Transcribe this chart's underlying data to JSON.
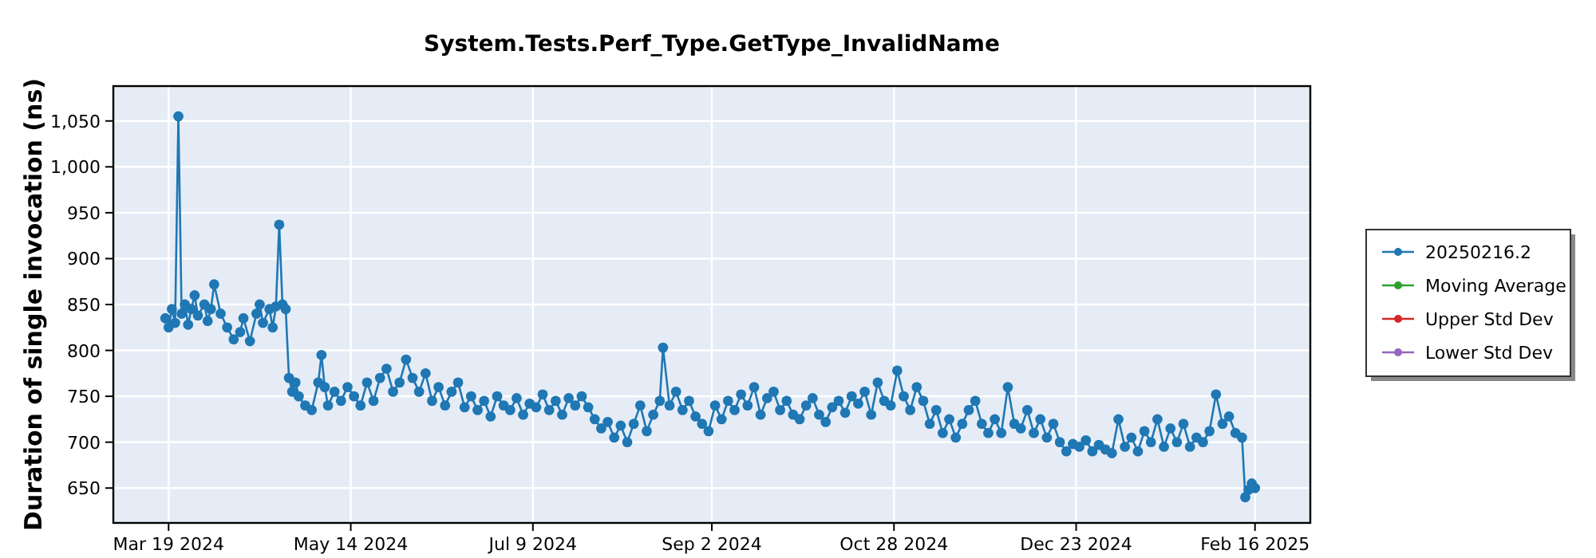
{
  "chart_data": {
    "type": "line",
    "title": "System.Tests.Perf_Type.GetType_InvalidName",
    "ylabel": "Duration of single invocation (ns)",
    "xlim": [
      "2024-03-02",
      "2025-03-05"
    ],
    "xticks": [
      {
        "value": "2024-03-19",
        "label": "Mar 19 2024"
      },
      {
        "value": "2024-05-14",
        "label": "May 14 2024"
      },
      {
        "value": "2024-07-09",
        "label": "Jul 9 2024"
      },
      {
        "value": "2024-09-02",
        "label": "Sep 2 2024"
      },
      {
        "value": "2024-10-28",
        "label": "Oct 28 2024"
      },
      {
        "value": "2024-12-23",
        "label": "Dec 23 2024"
      },
      {
        "value": "2025-02-16",
        "label": "Feb 16 2025"
      }
    ],
    "ylim": [
      612,
      1088
    ],
    "yticks": [
      650,
      700,
      750,
      800,
      850,
      900,
      950,
      {
        "value": 1000,
        "label": "1,000"
      },
      {
        "value": 1050,
        "label": "1,050"
      }
    ],
    "grid": true,
    "legend": "right",
    "marker": "circle",
    "line_style": "solid",
    "series": [
      {
        "name": "20250216.2",
        "color": "#1f77b4",
        "x": [
          "2024-03-18",
          "2024-03-19",
          "2024-03-20",
          "2024-03-21",
          "2024-03-22",
          "2024-03-23",
          "2024-03-24",
          "2024-03-25",
          "2024-03-26",
          "2024-03-27",
          "2024-03-28",
          "2024-03-30",
          "2024-03-31",
          "2024-04-01",
          "2024-04-02",
          "2024-04-04",
          "2024-04-06",
          "2024-04-08",
          "2024-04-10",
          "2024-04-11",
          "2024-04-13",
          "2024-04-15",
          "2024-04-16",
          "2024-04-17",
          "2024-04-19",
          "2024-04-20",
          "2024-04-21",
          "2024-04-22",
          "2024-04-23",
          "2024-04-24",
          "2024-04-25",
          "2024-04-26",
          "2024-04-27",
          "2024-04-28",
          "2024-04-30",
          "2024-05-02",
          "2024-05-04",
          "2024-05-05",
          "2024-05-06",
          "2024-05-07",
          "2024-05-09",
          "2024-05-11",
          "2024-05-13",
          "2024-05-15",
          "2024-05-17",
          "2024-05-19",
          "2024-05-21",
          "2024-05-23",
          "2024-05-25",
          "2024-05-27",
          "2024-05-29",
          "2024-05-31",
          "2024-06-02",
          "2024-06-04",
          "2024-06-06",
          "2024-06-08",
          "2024-06-10",
          "2024-06-12",
          "2024-06-14",
          "2024-06-16",
          "2024-06-18",
          "2024-06-20",
          "2024-06-22",
          "2024-06-24",
          "2024-06-26",
          "2024-06-28",
          "2024-06-30",
          "2024-07-02",
          "2024-07-04",
          "2024-07-06",
          "2024-07-08",
          "2024-07-10",
          "2024-07-12",
          "2024-07-14",
          "2024-07-16",
          "2024-07-18",
          "2024-07-20",
          "2024-07-22",
          "2024-07-24",
          "2024-07-26",
          "2024-07-28",
          "2024-07-30",
          "2024-08-01",
          "2024-08-03",
          "2024-08-05",
          "2024-08-07",
          "2024-08-09",
          "2024-08-11",
          "2024-08-13",
          "2024-08-15",
          "2024-08-17",
          "2024-08-18",
          "2024-08-20",
          "2024-08-22",
          "2024-08-24",
          "2024-08-26",
          "2024-08-28",
          "2024-08-30",
          "2024-09-01",
          "2024-09-03",
          "2024-09-05",
          "2024-09-07",
          "2024-09-09",
          "2024-09-11",
          "2024-09-13",
          "2024-09-15",
          "2024-09-17",
          "2024-09-19",
          "2024-09-21",
          "2024-09-23",
          "2024-09-25",
          "2024-09-27",
          "2024-09-29",
          "2024-10-01",
          "2024-10-03",
          "2024-10-05",
          "2024-10-07",
          "2024-10-09",
          "2024-10-11",
          "2024-10-13",
          "2024-10-15",
          "2024-10-17",
          "2024-10-19",
          "2024-10-21",
          "2024-10-23",
          "2024-10-25",
          "2024-10-27",
          "2024-10-29",
          "2024-10-31",
          "2024-11-02",
          "2024-11-04",
          "2024-11-06",
          "2024-11-08",
          "2024-11-10",
          "2024-11-12",
          "2024-11-14",
          "2024-11-16",
          "2024-11-18",
          "2024-11-20",
          "2024-11-22",
          "2024-11-24",
          "2024-11-26",
          "2024-11-28",
          "2024-11-30",
          "2024-12-02",
          "2024-12-04",
          "2024-12-06",
          "2024-12-08",
          "2024-12-10",
          "2024-12-12",
          "2024-12-14",
          "2024-12-16",
          "2024-12-18",
          "2024-12-20",
          "2024-12-22",
          "2024-12-24",
          "2024-12-26",
          "2024-12-28",
          "2024-12-30",
          "2025-01-01",
          "2025-01-03",
          "2025-01-05",
          "2025-01-07",
          "2025-01-09",
          "2025-01-11",
          "2025-01-13",
          "2025-01-15",
          "2025-01-17",
          "2025-01-19",
          "2025-01-21",
          "2025-01-23",
          "2025-01-25",
          "2025-01-27",
          "2025-01-29",
          "2025-01-31",
          "2025-02-02",
          "2025-02-04",
          "2025-02-06",
          "2025-02-08",
          "2025-02-10",
          "2025-02-12",
          "2025-02-13",
          "2025-02-14",
          "2025-02-15",
          "2025-02-16"
        ],
        "values": [
          835,
          825,
          845,
          830,
          1055,
          840,
          850,
          828,
          845,
          860,
          838,
          850,
          832,
          845,
          872,
          840,
          825,
          812,
          820,
          835,
          810,
          840,
          850,
          830,
          845,
          825,
          848,
          937,
          850,
          845,
          770,
          755,
          765,
          750,
          740,
          735,
          765,
          795,
          760,
          740,
          755,
          745,
          760,
          750,
          740,
          765,
          745,
          770,
          780,
          755,
          765,
          790,
          770,
          755,
          775,
          745,
          760,
          740,
          755,
          765,
          738,
          750,
          735,
          745,
          728,
          750,
          740,
          735,
          748,
          730,
          742,
          738,
          752,
          735,
          745,
          730,
          748,
          740,
          750,
          738,
          725,
          715,
          722,
          705,
          718,
          700,
          720,
          740,
          712,
          730,
          745,
          803,
          740,
          755,
          735,
          745,
          728,
          720,
          712,
          740,
          725,
          745,
          735,
          752,
          740,
          760,
          730,
          748,
          755,
          735,
          745,
          730,
          725,
          740,
          748,
          730,
          722,
          738,
          745,
          732,
          750,
          742,
          755,
          730,
          765,
          745,
          740,
          778,
          750,
          735,
          760,
          745,
          720,
          735,
          710,
          725,
          705,
          720,
          735,
          745,
          720,
          710,
          725,
          710,
          760,
          720,
          715,
          735,
          710,
          725,
          705,
          720,
          700,
          690,
          698,
          695,
          702,
          690,
          697,
          692,
          688,
          725,
          695,
          705,
          690,
          712,
          700,
          725,
          695,
          715,
          700,
          720,
          695,
          705,
          700,
          712,
          752,
          720,
          728,
          710,
          705,
          640,
          648,
          655,
          650
        ]
      },
      {
        "name": "Moving Average",
        "color": "#2ca02c"
      },
      {
        "name": "Upper Std Dev",
        "color": "#d62728"
      },
      {
        "name": "Lower Std Dev",
        "color": "#9467bd"
      }
    ]
  }
}
